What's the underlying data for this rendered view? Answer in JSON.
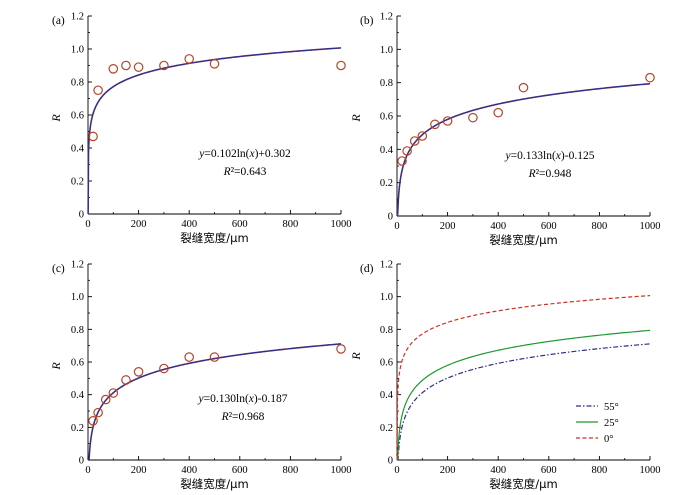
{
  "colors": {
    "fit": "#2e2e8c",
    "marker": "#b5442a",
    "c55": "#2e2e8c",
    "c25": "#1e9a2e",
    "c0": "#d42e1e"
  },
  "chart_data": [
    {
      "panel": "(a)",
      "type": "scatter",
      "xlabel": "裂缝宽度/μm",
      "ylabel": "R",
      "xlim": [
        0,
        1000
      ],
      "ylim": [
        0,
        1.2
      ],
      "xticks": [
        "0",
        "200",
        "400",
        "600",
        "800",
        "1000"
      ],
      "yticks": [
        "0",
        "0.2",
        "0.4",
        "0.6",
        "0.8",
        "1.0",
        "1.2"
      ],
      "points": [
        {
          "x": 20,
          "y": 0.47
        },
        {
          "x": 40,
          "y": 0.75
        },
        {
          "x": 100,
          "y": 0.88
        },
        {
          "x": 150,
          "y": 0.9
        },
        {
          "x": 200,
          "y": 0.89
        },
        {
          "x": 300,
          "y": 0.9
        },
        {
          "x": 400,
          "y": 0.94
        },
        {
          "x": 500,
          "y": 0.91
        },
        {
          "x": 1000,
          "y": 0.9
        }
      ],
      "fit": {
        "a": 0.102,
        "b": 0.302
      },
      "equation": "y=0.102ln(x)+0.302",
      "r2": "R²=0.643"
    },
    {
      "panel": "(b)",
      "type": "scatter",
      "xlabel": "裂缝宽度/μm",
      "ylabel": "R",
      "xlim": [
        0,
        1000
      ],
      "ylim": [
        0,
        1.2
      ],
      "xticks": [
        "0",
        "200",
        "400",
        "600",
        "800",
        "1000"
      ],
      "yticks": [
        "0",
        "0.2",
        "0.4",
        "0.6",
        "0.8",
        "1.0",
        "1.2"
      ],
      "points": [
        {
          "x": 20,
          "y": 0.33
        },
        {
          "x": 40,
          "y": 0.39
        },
        {
          "x": 70,
          "y": 0.45
        },
        {
          "x": 100,
          "y": 0.48
        },
        {
          "x": 150,
          "y": 0.55
        },
        {
          "x": 200,
          "y": 0.57
        },
        {
          "x": 300,
          "y": 0.59
        },
        {
          "x": 400,
          "y": 0.62
        },
        {
          "x": 500,
          "y": 0.77
        },
        {
          "x": 1000,
          "y": 0.83
        }
      ],
      "fit": {
        "a": 0.133,
        "b": -0.125
      },
      "equation": "y=0.133ln(x)-0.125",
      "r2": "R²=0.948"
    },
    {
      "panel": "(c)",
      "type": "scatter",
      "xlabel": "裂缝宽度/μm",
      "ylabel": "R",
      "xlim": [
        0,
        1000
      ],
      "ylim": [
        0,
        1.2
      ],
      "xticks": [
        "0",
        "200",
        "400",
        "600",
        "800",
        "1000"
      ],
      "yticks": [
        "0",
        "0.2",
        "0.4",
        "0.6",
        "0.8",
        "1.0",
        "1.2"
      ],
      "points": [
        {
          "x": 20,
          "y": 0.24
        },
        {
          "x": 40,
          "y": 0.29
        },
        {
          "x": 70,
          "y": 0.37
        },
        {
          "x": 100,
          "y": 0.41
        },
        {
          "x": 150,
          "y": 0.49
        },
        {
          "x": 200,
          "y": 0.54
        },
        {
          "x": 300,
          "y": 0.56
        },
        {
          "x": 400,
          "y": 0.63
        },
        {
          "x": 500,
          "y": 0.63
        },
        {
          "x": 1000,
          "y": 0.68
        }
      ],
      "fit": {
        "a": 0.13,
        "b": -0.187
      },
      "equation": "y=0.130ln(x)-0.187",
      "r2": "R²=0.968"
    },
    {
      "panel": "(d)",
      "type": "line",
      "xlabel": "裂缝宽度/μm",
      "ylabel": "R",
      "xlim": [
        0,
        1000
      ],
      "ylim": [
        0,
        1.2
      ],
      "xticks": [
        "0",
        "200",
        "400",
        "600",
        "800",
        "1000"
      ],
      "yticks": [
        "0",
        "0.2",
        "0.4",
        "0.6",
        "0.8",
        "1.0",
        "1.2"
      ],
      "legend_position": "bottom-right",
      "series": [
        {
          "name": "55°",
          "a": 0.13,
          "b": -0.187,
          "style": "dashdot",
          "color": "#2e2e8c"
        },
        {
          "name": "25°",
          "a": 0.133,
          "b": -0.125,
          "style": "solid",
          "color": "#1e9a2e"
        },
        {
          "name": "0°",
          "a": 0.102,
          "b": 0.302,
          "style": "dashed",
          "color": "#d42e1e"
        }
      ]
    }
  ]
}
